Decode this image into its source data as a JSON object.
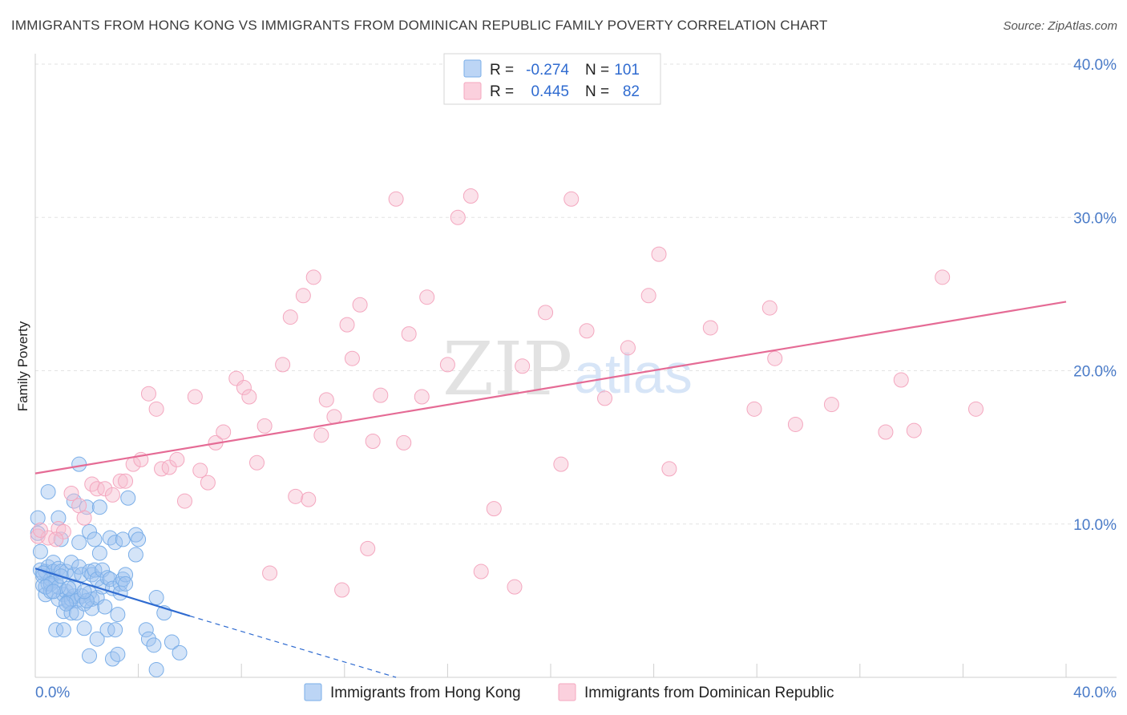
{
  "title": "IMMIGRANTS FROM HONG KONG VS IMMIGRANTS FROM DOMINICAN REPUBLIC FAMILY POVERTY CORRELATION CHART",
  "source": "Source: ZipAtlas.com",
  "watermark": {
    "zip": "ZIP",
    "atlas": "atlas"
  },
  "legend": {
    "r_label": "R =",
    "n_label": "N =",
    "rows": [
      {
        "r": "-0.274",
        "n": "101"
      },
      {
        "r": "0.445",
        "n": "82"
      }
    ]
  },
  "chart_data": {
    "type": "scatter",
    "title": "IMMIGRANTS FROM HONG KONG VS IMMIGRANTS FROM DOMINICAN REPUBLIC FAMILY POVERTY CORRELATION CHART",
    "xlabel": "",
    "ylabel": "Family Poverty",
    "xlim": [
      0,
      40
    ],
    "ylim": [
      0,
      40
    ],
    "x_tick_labels": [
      "0.0%",
      "40.0%"
    ],
    "y_ticks": [
      10,
      20,
      30,
      40
    ],
    "y_tick_labels": [
      "10.0%",
      "20.0%",
      "30.0%",
      "40.0%"
    ],
    "colors": {
      "hk": "#7aaee8",
      "hk_line": "#2f6bd0",
      "dr": "#f4a7bf",
      "dr_line": "#e56b95",
      "tick": "#4a7bc8"
    },
    "series": [
      {
        "name": "Immigrants from Hong Kong",
        "R": -0.274,
        "N": 101,
        "trend": {
          "x0": 0,
          "y0": 7.1,
          "x1": 6,
          "y1": 4.0,
          "dash_to_x": 14,
          "dash_to_y": 0
        },
        "points": [
          [
            0.1,
            10.4
          ],
          [
            0.1,
            9.4
          ],
          [
            0.2,
            8.2
          ],
          [
            0.2,
            7.0
          ],
          [
            0.3,
            6.6
          ],
          [
            0.3,
            6.0
          ],
          [
            0.4,
            5.4
          ],
          [
            0.4,
            6.9
          ],
          [
            0.5,
            12.1
          ],
          [
            0.5,
            7.2
          ],
          [
            0.5,
            6.1
          ],
          [
            0.6,
            5.6
          ],
          [
            0.6,
            6.4
          ],
          [
            0.7,
            7.5
          ],
          [
            0.7,
            6.9
          ],
          [
            0.8,
            6.3
          ],
          [
            0.8,
            3.1
          ],
          [
            0.9,
            10.4
          ],
          [
            0.9,
            7.1
          ],
          [
            0.9,
            5.1
          ],
          [
            1.0,
            9.0
          ],
          [
            1.0,
            6.9
          ],
          [
            1.1,
            5.4
          ],
          [
            1.1,
            4.3
          ],
          [
            1.1,
            3.1
          ],
          [
            1.2,
            6.9
          ],
          [
            1.2,
            5.6
          ],
          [
            1.3,
            5.0
          ],
          [
            1.3,
            4.9
          ],
          [
            1.4,
            7.5
          ],
          [
            1.4,
            5.1
          ],
          [
            1.4,
            4.2
          ],
          [
            1.5,
            11.5
          ],
          [
            1.5,
            6.7
          ],
          [
            1.5,
            5.3
          ],
          [
            1.6,
            5.0
          ],
          [
            1.6,
            4.2
          ],
          [
            1.7,
            13.9
          ],
          [
            1.7,
            8.8
          ],
          [
            1.7,
            7.2
          ],
          [
            1.8,
            6.7
          ],
          [
            1.8,
            5.3
          ],
          [
            1.9,
            4.8
          ],
          [
            1.9,
            3.2
          ],
          [
            2.0,
            11.1
          ],
          [
            2.1,
            9.5
          ],
          [
            2.1,
            6.9
          ],
          [
            2.1,
            5.5
          ],
          [
            2.1,
            1.4
          ],
          [
            2.2,
            6.7
          ],
          [
            2.2,
            5.1
          ],
          [
            2.2,
            4.5
          ],
          [
            2.3,
            9.0
          ],
          [
            2.3,
            7.0
          ],
          [
            2.4,
            6.4
          ],
          [
            2.4,
            5.2
          ],
          [
            2.4,
            2.5
          ],
          [
            2.5,
            11.1
          ],
          [
            2.5,
            8.1
          ],
          [
            2.6,
            7.0
          ],
          [
            2.6,
            5.9
          ],
          [
            2.7,
            4.6
          ],
          [
            2.8,
            6.5
          ],
          [
            2.8,
            3.1
          ],
          [
            2.9,
            9.1
          ],
          [
            2.9,
            6.4
          ],
          [
            3.0,
            5.8
          ],
          [
            3.0,
            1.2
          ],
          [
            3.1,
            8.8
          ],
          [
            3.1,
            3.1
          ],
          [
            3.2,
            1.5
          ],
          [
            3.2,
            4.1
          ],
          [
            3.3,
            6.1
          ],
          [
            3.3,
            5.5
          ],
          [
            3.4,
            9.0
          ],
          [
            3.4,
            6.4
          ],
          [
            3.5,
            6.7
          ],
          [
            3.5,
            6.1
          ],
          [
            3.6,
            11.7
          ],
          [
            3.9,
            9.3
          ],
          [
            3.9,
            8.0
          ],
          [
            4.0,
            9.0
          ],
          [
            4.3,
            3.1
          ],
          [
            4.4,
            2.5
          ],
          [
            4.6,
            2.1
          ],
          [
            4.7,
            5.2
          ],
          [
            4.7,
            0.5
          ],
          [
            5.0,
            4.2
          ],
          [
            5.3,
            2.3
          ],
          [
            5.6,
            1.6
          ],
          [
            0.3,
            6.8
          ],
          [
            0.6,
            6.1
          ],
          [
            0.9,
            5.9
          ],
          [
            1.2,
            4.8
          ],
          [
            1.5,
            5.9
          ],
          [
            2.0,
            5.0
          ],
          [
            1.9,
            5.6
          ],
          [
            0.4,
            5.9
          ],
          [
            0.7,
            5.6
          ],
          [
            1.0,
            6.6
          ],
          [
            1.3,
            5.8
          ]
        ]
      },
      {
        "name": "Immigrants from Dominican Republic",
        "R": 0.445,
        "N": 82,
        "trend": {
          "x0": 0,
          "y0": 13.3,
          "x1": 40,
          "y1": 24.5
        },
        "points": [
          [
            0.1,
            9.2
          ],
          [
            0.5,
            9.1
          ],
          [
            0.9,
            9.7
          ],
          [
            1.1,
            9.5
          ],
          [
            1.4,
            12.0
          ],
          [
            1.7,
            11.2
          ],
          [
            1.9,
            10.4
          ],
          [
            2.2,
            12.6
          ],
          [
            2.4,
            12.3
          ],
          [
            2.7,
            12.3
          ],
          [
            3.0,
            11.9
          ],
          [
            3.3,
            12.8
          ],
          [
            3.5,
            12.8
          ],
          [
            3.8,
            13.9
          ],
          [
            4.1,
            14.2
          ],
          [
            4.4,
            18.5
          ],
          [
            4.7,
            17.5
          ],
          [
            4.9,
            13.6
          ],
          [
            5.2,
            13.7
          ],
          [
            5.5,
            14.2
          ],
          [
            5.8,
            11.5
          ],
          [
            6.2,
            18.3
          ],
          [
            6.4,
            13.5
          ],
          [
            6.7,
            12.7
          ],
          [
            7.0,
            15.3
          ],
          [
            7.3,
            16.0
          ],
          [
            7.8,
            19.5
          ],
          [
            8.1,
            18.9
          ],
          [
            8.3,
            18.3
          ],
          [
            8.6,
            14.0
          ],
          [
            8.9,
            16.4
          ],
          [
            9.1,
            6.8
          ],
          [
            9.6,
            20.4
          ],
          [
            9.9,
            23.5
          ],
          [
            10.1,
            11.8
          ],
          [
            10.4,
            24.9
          ],
          [
            10.6,
            11.6
          ],
          [
            10.8,
            26.1
          ],
          [
            11.1,
            15.8
          ],
          [
            11.3,
            18.1
          ],
          [
            11.6,
            17.0
          ],
          [
            11.9,
            5.7
          ],
          [
            12.1,
            23.0
          ],
          [
            12.3,
            20.8
          ],
          [
            12.6,
            24.3
          ],
          [
            12.9,
            8.4
          ],
          [
            13.1,
            15.4
          ],
          [
            13.4,
            18.4
          ],
          [
            14.0,
            31.2
          ],
          [
            14.3,
            15.3
          ],
          [
            14.5,
            22.4
          ],
          [
            15.0,
            18.3
          ],
          [
            15.2,
            24.8
          ],
          [
            16.0,
            20.4
          ],
          [
            16.4,
            30.0
          ],
          [
            16.9,
            31.4
          ],
          [
            17.3,
            6.9
          ],
          [
            17.8,
            11.0
          ],
          [
            18.6,
            5.9
          ],
          [
            18.9,
            20.3
          ],
          [
            19.8,
            23.8
          ],
          [
            20.4,
            13.9
          ],
          [
            20.8,
            31.2
          ],
          [
            21.4,
            22.6
          ],
          [
            22.1,
            18.2
          ],
          [
            23.0,
            21.5
          ],
          [
            23.8,
            24.9
          ],
          [
            24.2,
            27.6
          ],
          [
            24.6,
            13.6
          ],
          [
            26.2,
            22.8
          ],
          [
            27.9,
            17.5
          ],
          [
            28.5,
            24.1
          ],
          [
            28.7,
            20.8
          ],
          [
            29.5,
            16.5
          ],
          [
            30.9,
            17.8
          ],
          [
            33.0,
            16.0
          ],
          [
            33.6,
            19.4
          ],
          [
            34.1,
            16.1
          ],
          [
            35.2,
            26.1
          ],
          [
            36.5,
            17.5
          ],
          [
            0.2,
            9.6
          ],
          [
            0.8,
            9.0
          ]
        ]
      }
    ]
  },
  "bottom_legend": [
    "Immigrants from Hong Kong",
    "Immigrants from Dominican Republic"
  ]
}
